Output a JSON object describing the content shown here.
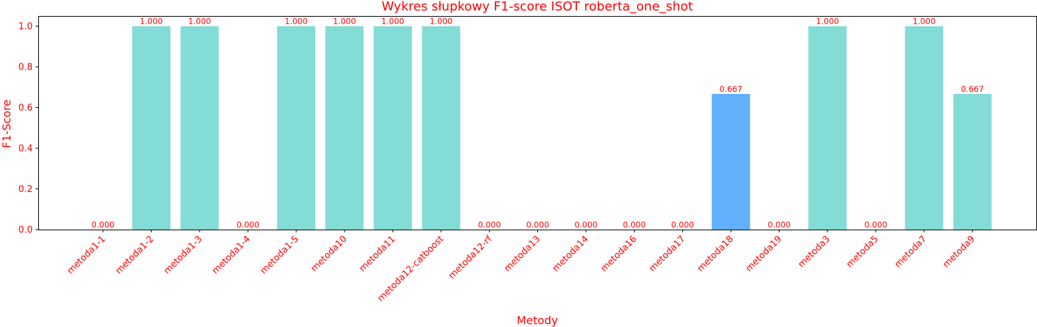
{
  "chart_data": {
    "type": "bar",
    "title": "Wykres słupkowy F1-score ISOT roberta_one_shot",
    "xlabel": "Metody",
    "ylabel": "F1-Score",
    "ylim": [
      0,
      1.05
    ],
    "yticks": [
      "0.0",
      "0.2",
      "0.4",
      "0.6",
      "0.8",
      "1.0"
    ],
    "grid": false,
    "categories": [
      "metoda1-1",
      "metoda1-2",
      "metoda1-3",
      "metoda1-4",
      "metoda1-5",
      "metoda10",
      "metoda11",
      "metoda12-catboost",
      "metoda12-rf",
      "metoda13",
      "metoda14",
      "metoda16",
      "metoda17",
      "metoda18",
      "metoda19",
      "metoda3",
      "metoda5",
      "metoda7",
      "metoda9"
    ],
    "values": [
      0.0,
      1.0,
      1.0,
      0.0,
      1.0,
      1.0,
      1.0,
      1.0,
      0.0,
      0.0,
      0.0,
      0.0,
      0.0,
      0.667,
      0.0,
      1.0,
      0.0,
      1.0,
      0.667
    ],
    "value_labels": [
      "0.000",
      "1.000",
      "1.000",
      "0.000",
      "1.000",
      "1.000",
      "1.000",
      "1.000",
      "0.000",
      "0.000",
      "0.000",
      "0.000",
      "0.000",
      "0.667",
      "0.000",
      "1.000",
      "0.000",
      "1.000",
      "0.667"
    ],
    "highlight_index": 13
  },
  "colors": {
    "text": "#ff0000",
    "bar": "#84dcd6",
    "bar_highlight": "#62b0fe",
    "axis": "#000000"
  }
}
